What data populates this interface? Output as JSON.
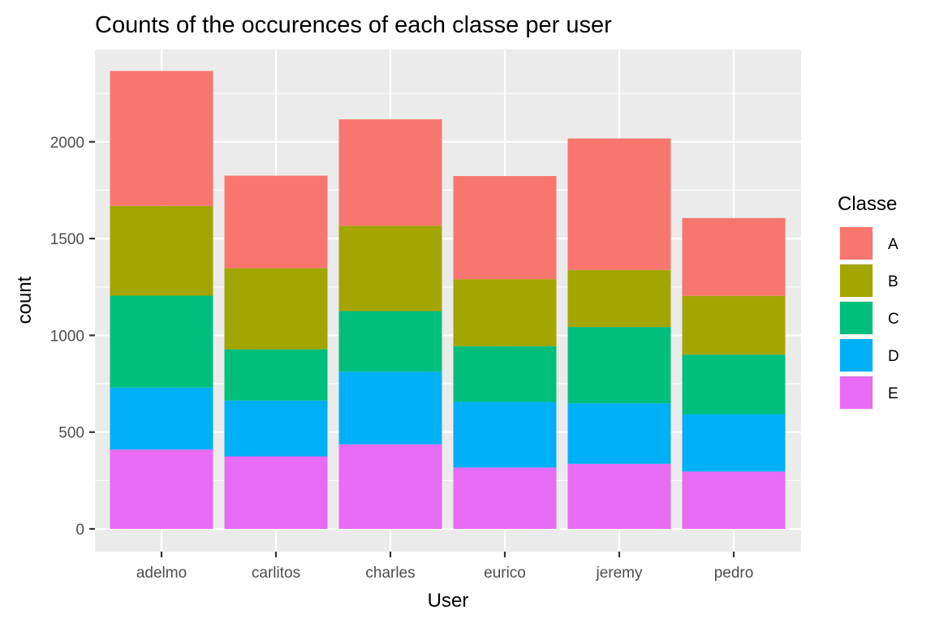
{
  "chart_data": {
    "type": "bar",
    "stacked": true,
    "title": "Counts of the occurences of each classe per user",
    "xlabel": "User",
    "ylabel": "count",
    "categories": [
      "adelmo",
      "carlitos",
      "charles",
      "eurico",
      "jeremy",
      "pedro"
    ],
    "ylim": [
      0,
      2360
    ],
    "yticks": [
      0,
      500,
      1000,
      1500,
      2000
    ],
    "grid": true,
    "legend": {
      "title": "Classe",
      "placement": "right"
    },
    "series": [
      {
        "name": "A",
        "color": "#F8766D",
        "values": [
          697,
          478,
          550,
          533,
          679,
          402
        ]
      },
      {
        "name": "B",
        "color": "#A3A500",
        "values": [
          464,
          419,
          441,
          346,
          295,
          304
        ]
      },
      {
        "name": "C",
        "color": "#00BF7D",
        "values": [
          475,
          265,
          313,
          288,
          394,
          307
        ]
      },
      {
        "name": "D",
        "color": "#00B0F6",
        "values": [
          320,
          288,
          375,
          339,
          313,
          297
        ]
      },
      {
        "name": "E",
        "color": "#E76BF3",
        "values": [
          410,
          375,
          437,
          317,
          336,
          296
        ]
      }
    ]
  }
}
